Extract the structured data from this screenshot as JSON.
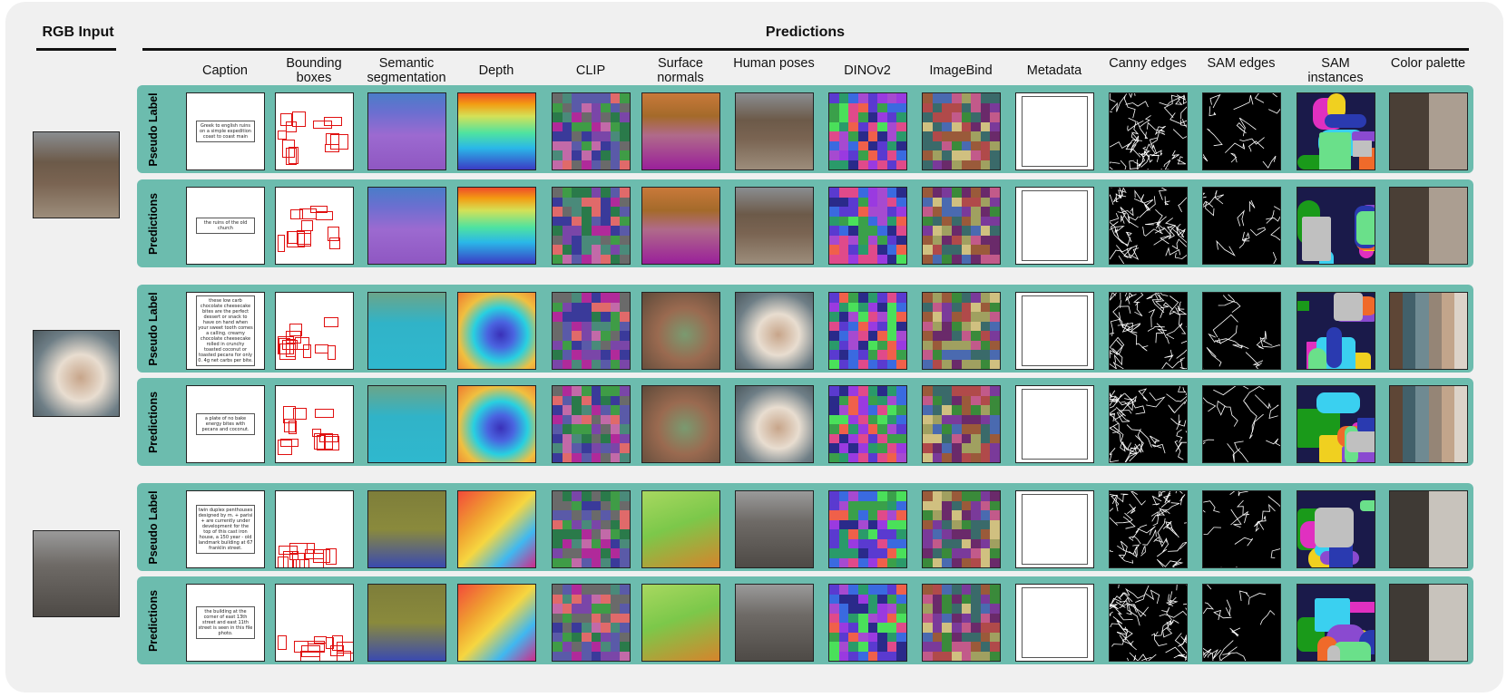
{
  "headers": {
    "rgb_input": "RGB Input",
    "predictions": "Predictions"
  },
  "columns": [
    "Caption",
    "Bounding boxes",
    "Semantic segmentation",
    "Depth",
    "CLIP",
    "Surface normals",
    "Human poses",
    "DINOv2",
    "ImageBind",
    "Metadata",
    "Canny edges",
    "SAM edges",
    "SAM instances",
    "Color palette"
  ],
  "row_labels": {
    "pseudo": "Pseudo Label",
    "pred": "Predictions"
  },
  "examples": [
    {
      "scene": "ruins",
      "captions": {
        "pseudo": "Greek to english ruins on a simple expedition coast to coast main",
        "pred": "the ruins of the old church"
      },
      "palette": [
        "#4a3f36",
        "#ab9e91"
      ]
    },
    {
      "scene": "food",
      "captions": {
        "pseudo": "these low carb chocolate cheesecake bites are the perfect dessert or snack to have on hand when your sweet tooth comes a calling. creamy chocolate cheesecake rolled in crunchy toasted coconut or toasted pecans for only 0. 4g net carbs per bite.",
        "pred": "a plate of no bake energy bites with pecans and coconut."
      },
      "palette": [
        "#5e4636",
        "#42606a",
        "#6f8a92",
        "#958576",
        "#c2a58b",
        "#dcd3c9"
      ]
    },
    {
      "scene": "building",
      "captions": {
        "pseudo": "twin duplex penthouses designed by m. + parisi + are currently under development for the top of this cast iron house, a 150 year - old landmark building at 67 franklin street.",
        "pred": "the building at the corner of east 13th street and east 11th street is seen in this file photo."
      },
      "palette": [
        "#3f3a35",
        "#c8c3bc"
      ]
    }
  ]
}
